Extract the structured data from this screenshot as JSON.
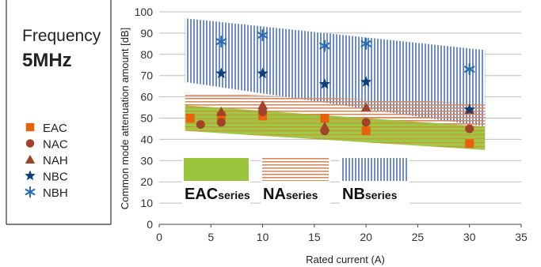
{
  "panel": {
    "frequency_label": "Frequency",
    "frequency_value": "5MHz"
  },
  "legend": [
    {
      "name": "EAC",
      "marker": "square-marker-icon",
      "color": "#e8620c"
    },
    {
      "name": "NAC",
      "marker": "circle-marker-icon",
      "color": "#a0432a"
    },
    {
      "name": "NAH",
      "marker": "triangle-marker-icon",
      "color": "#a0432a"
    },
    {
      "name": "NBC",
      "marker": "star-marker-icon",
      "color": "#0d3f7a"
    },
    {
      "name": "NBH",
      "marker": "asterisk-marker-icon",
      "color": "#2a6db3"
    }
  ],
  "band_labels": [
    {
      "main": "EAC",
      "sub": "series",
      "swatch": "solid",
      "color": "#9bc53d"
    },
    {
      "main": "NA",
      "sub": "series",
      "swatch": "horizontal-stripes",
      "color": "#d98a5c"
    },
    {
      "main": "NB",
      "sub": "series",
      "swatch": "vertical-stripes",
      "color": "#6f8fc4"
    }
  ],
  "chart_data": {
    "type": "scatter",
    "xlabel": "Rated current (A)",
    "ylabel": "Common mode attenuation amount [dB]",
    "xlim": [
      0,
      35
    ],
    "ylim": [
      0,
      100
    ],
    "xticks": [
      0,
      5,
      10,
      15,
      20,
      25,
      30,
      35
    ],
    "yticks": [
      0,
      10,
      20,
      30,
      40,
      50,
      60,
      70,
      80,
      90,
      100
    ],
    "grid": "horizontal",
    "legend_position": "left",
    "bands": [
      {
        "name": "NBseries",
        "color": "#6f8fc4",
        "pattern": "vertical-stripes",
        "x_start": 2.5,
        "x_end": 31.5,
        "upper": [
          97,
          82
        ],
        "lower": [
          67,
          46
        ]
      },
      {
        "name": "NAseries",
        "color": "#d98a5c",
        "pattern": "horizontal-stripes",
        "x_start": 2.5,
        "x_end": 31.5,
        "upper": [
          62,
          57
        ],
        "lower": [
          45,
          41
        ]
      },
      {
        "name": "EACseries",
        "color": "#9bc53d",
        "pattern": "solid-with-stripes",
        "x_start": 2.5,
        "x_end": 31.5,
        "upper": [
          56,
          46
        ],
        "lower": [
          44,
          35
        ]
      }
    ],
    "series": [
      {
        "name": "EAC",
        "marker": "square",
        "color": "#e8620c",
        "points": [
          [
            3,
            50
          ],
          [
            6,
            51
          ],
          [
            10,
            51
          ],
          [
            16,
            50
          ],
          [
            20,
            44
          ],
          [
            30,
            38
          ]
        ]
      },
      {
        "name": "NAC",
        "marker": "circle",
        "color": "#a0432a",
        "points": [
          [
            4,
            47
          ],
          [
            6,
            48
          ],
          [
            10,
            53
          ],
          [
            16,
            44
          ],
          [
            20,
            48
          ],
          [
            30,
            45
          ]
        ]
      },
      {
        "name": "NAH",
        "marker": "triangle",
        "color": "#a0432a",
        "points": [
          [
            6,
            53
          ],
          [
            10,
            56
          ],
          [
            16,
            46
          ],
          [
            20,
            55
          ],
          [
            30,
            54
          ]
        ]
      },
      {
        "name": "NBC",
        "marker": "star",
        "color": "#0d3f7a",
        "points": [
          [
            6,
            71
          ],
          [
            10,
            71
          ],
          [
            16,
            66
          ],
          [
            20,
            67
          ],
          [
            30,
            54
          ]
        ]
      },
      {
        "name": "NBH",
        "marker": "asterisk",
        "color": "#2a6db3",
        "points": [
          [
            6,
            86
          ],
          [
            10,
            89
          ],
          [
            16,
            84
          ],
          [
            20,
            85
          ],
          [
            30,
            73
          ]
        ]
      }
    ]
  }
}
